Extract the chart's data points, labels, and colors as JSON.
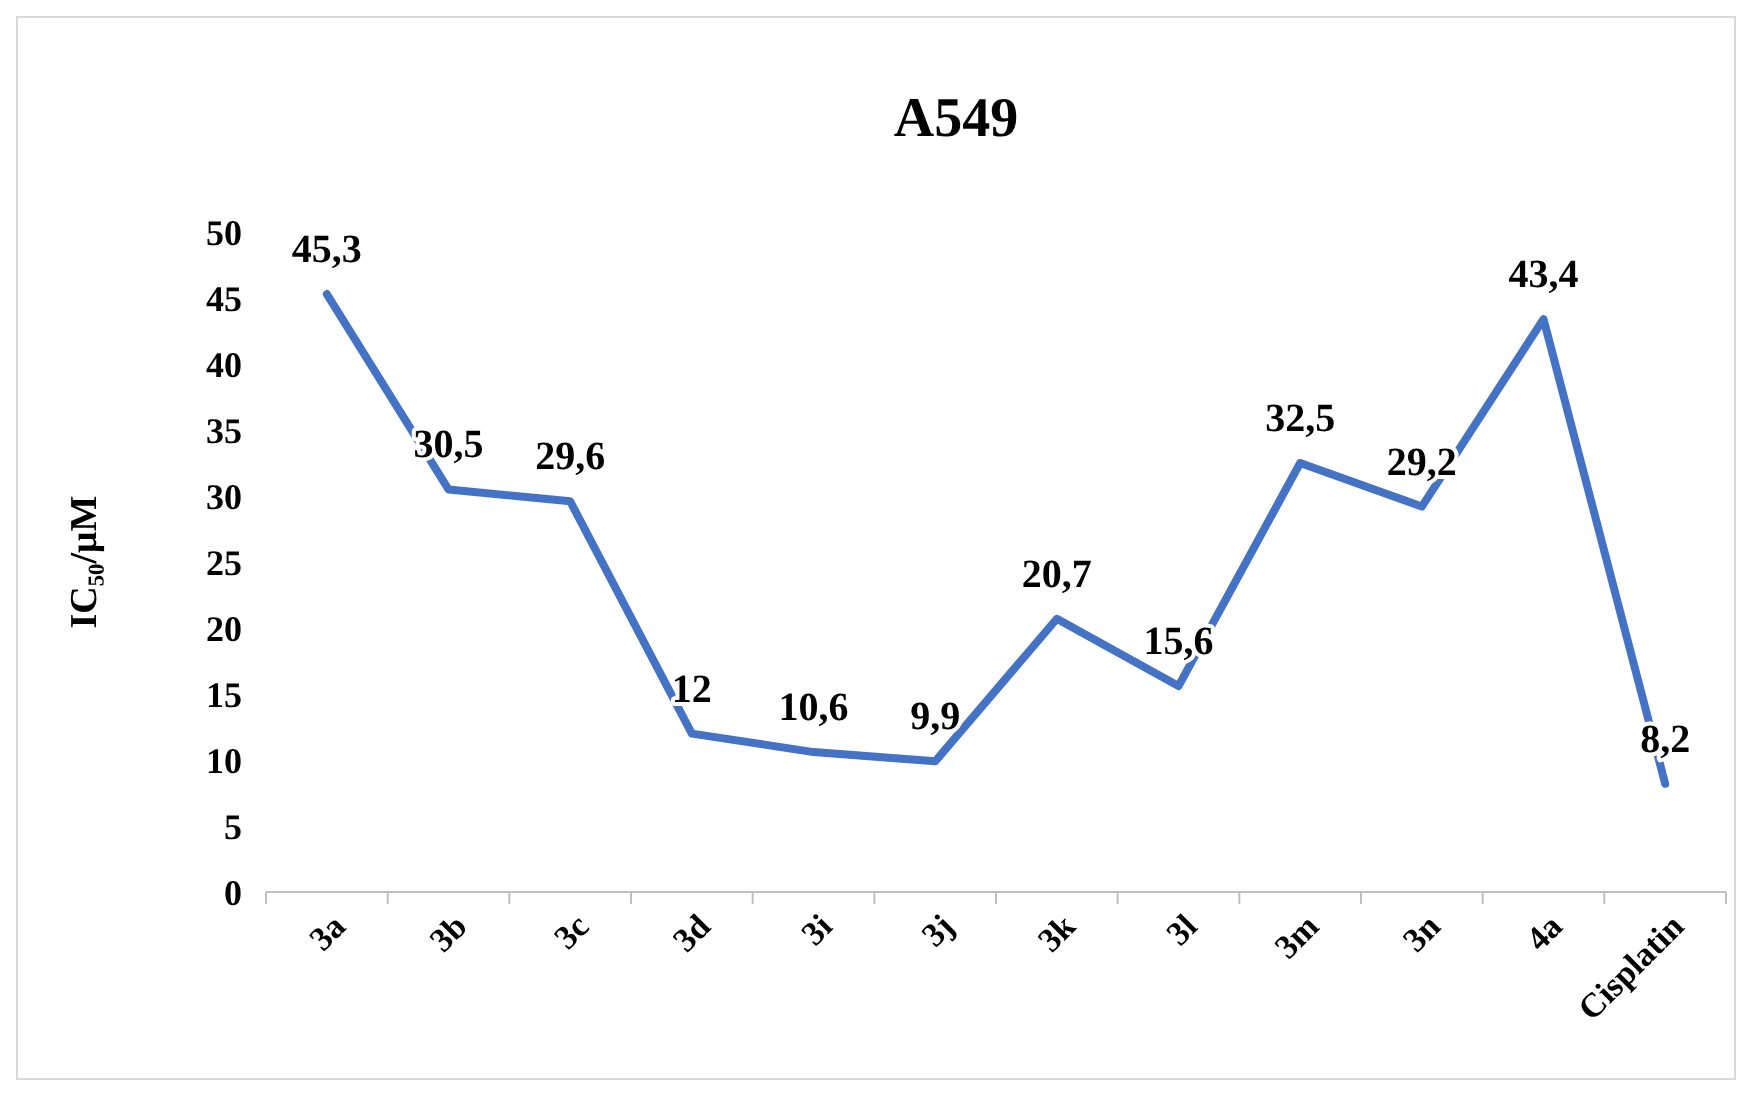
{
  "chart_data": {
    "type": "line",
    "title": "A549",
    "ylabel": "IC₅₀/μM",
    "categories": [
      "3a",
      "3b",
      "3c",
      "3d",
      "3i",
      "3j",
      "3k",
      "3l",
      "3m",
      "3n",
      "4a",
      "Cisplatin"
    ],
    "values": [
      45.3,
      30.5,
      29.6,
      12,
      10.6,
      9.9,
      20.7,
      15.6,
      32.5,
      29.2,
      43.4,
      8.2
    ],
    "value_labels": [
      "45,3",
      "30,5",
      "29,6",
      "12",
      "10,6",
      "9,9",
      "20,7",
      "15,6",
      "32,5",
      "29,2",
      "43,4",
      "8,2"
    ],
    "color": "#4472c4",
    "ylim": [
      0,
      50
    ],
    "yticks": [
      0,
      5,
      10,
      15,
      20,
      25,
      30,
      35,
      40,
      45,
      50
    ],
    "grid": false,
    "marker": "none",
    "line_style": "solid"
  }
}
